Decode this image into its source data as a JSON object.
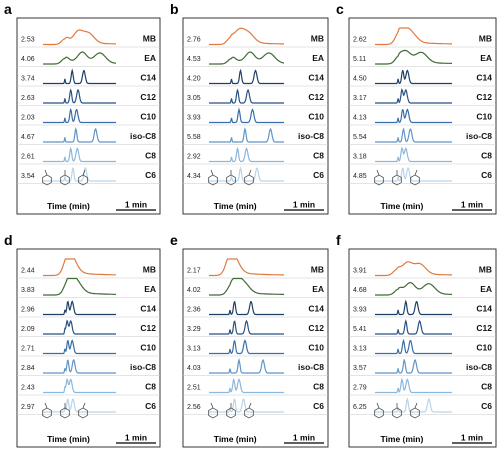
{
  "chart_data": [
    {
      "panel": "a",
      "type": "line",
      "xlabel": "Time (min)",
      "scale_bar": "1 min",
      "rows": [
        {
          "label": "MB",
          "value": "2.53",
          "color": "#e07a3c",
          "peaks": [
            0.3,
            0.48,
            0.62
          ]
        },
        {
          "label": "EA",
          "value": "4.06",
          "color": "#3f6b35",
          "peaks": [
            0.3,
            0.54,
            0.78
          ]
        },
        {
          "label": "C14",
          "value": "3.74",
          "color": "#1e3f66",
          "peaks": [
            0.3,
            0.4,
            0.56
          ]
        },
        {
          "label": "C12",
          "value": "2.63",
          "color": "#2a5282",
          "peaks": [
            0.3,
            0.38,
            0.48
          ]
        },
        {
          "label": "C10",
          "value": "2.03",
          "color": "#3a6ea8",
          "peaks": [
            0.3,
            0.38,
            0.46
          ]
        },
        {
          "label": "iso-C8",
          "value": "4.67",
          "color": "#5f95c8",
          "peaks": [
            0.3,
            0.45,
            0.72
          ]
        },
        {
          "label": "C8",
          "value": "2.61",
          "color": "#8cb7dc",
          "peaks": [
            0.3,
            0.38,
            0.47
          ]
        },
        {
          "label": "C6",
          "value": "3.54",
          "color": "#b9d4ea",
          "peaks": [
            0.3,
            0.41,
            0.58
          ]
        }
      ]
    },
    {
      "panel": "b",
      "type": "line",
      "xlabel": "Time (min)",
      "scale_bar": "1 min",
      "rows": [
        {
          "label": "MB",
          "value": "2.76",
          "color": "#e07a3c",
          "peaks": [
            0.28,
            0.4,
            0.52
          ]
        },
        {
          "label": "EA",
          "value": "4.53",
          "color": "#3f6b35",
          "peaks": [
            0.3,
            0.55,
            0.8
          ]
        },
        {
          "label": "C14",
          "value": "4.20",
          "color": "#1e3f66",
          "peaks": [
            0.3,
            0.42,
            0.62
          ]
        },
        {
          "label": "C12",
          "value": "3.05",
          "color": "#2a5282",
          "peaks": [
            0.3,
            0.38,
            0.52
          ]
        },
        {
          "label": "C10",
          "value": "3.93",
          "color": "#3a6ea8",
          "peaks": [
            0.3,
            0.4,
            0.58
          ]
        },
        {
          "label": "iso-C8",
          "value": "5.58",
          "color": "#5f95c8",
          "peaks": [
            0.3,
            0.48,
            0.82
          ]
        },
        {
          "label": "C8",
          "value": "2.92",
          "color": "#8cb7dc",
          "peaks": [
            0.3,
            0.38,
            0.5
          ]
        },
        {
          "label": "C6",
          "value": "4.34",
          "color": "#b9d4ea",
          "peaks": [
            0.3,
            0.42,
            0.64
          ]
        }
      ]
    },
    {
      "panel": "c",
      "type": "line",
      "xlabel": "Time (min)",
      "scale_bar": "1 min",
      "rows": [
        {
          "label": "MB",
          "value": "2.62",
          "color": "#e07a3c",
          "peaks": [
            0.3,
            0.36,
            0.46
          ]
        },
        {
          "label": "EA",
          "value": "5.11",
          "color": "#3f6b35",
          "peaks": [
            0.3,
            0.4,
            0.6
          ]
        },
        {
          "label": "C14",
          "value": "4.50",
          "color": "#1e3f66",
          "peaks": [
            0.3,
            0.36,
            0.42
          ]
        },
        {
          "label": "C12",
          "value": "3.17",
          "color": "#2a5282",
          "peaks": [
            0.3,
            0.35,
            0.4
          ]
        },
        {
          "label": "C10",
          "value": "4.13",
          "color": "#3a6ea8",
          "peaks": [
            0.3,
            0.36,
            0.42
          ]
        },
        {
          "label": "iso-C8",
          "value": "5.54",
          "color": "#5f95c8",
          "peaks": [
            0.3,
            0.37,
            0.46
          ]
        },
        {
          "label": "C8",
          "value": "3.18",
          "color": "#8cb7dc",
          "peaks": [
            0.3,
            0.35,
            0.4
          ]
        },
        {
          "label": "C6",
          "value": "4.85",
          "color": "#b9d4ea",
          "peaks": [
            0.3,
            0.36,
            0.43
          ]
        }
      ]
    },
    {
      "panel": "d",
      "type": "line",
      "xlabel": "Time (min)",
      "scale_bar": "1 min",
      "rows": [
        {
          "label": "MB",
          "value": "2.44",
          "color": "#e07a3c",
          "peaks": [
            0.32,
            0.36,
            0.4
          ]
        },
        {
          "label": "EA",
          "value": "3.83",
          "color": "#3f6b35",
          "peaks": [
            0.32,
            0.38,
            0.46
          ]
        },
        {
          "label": "C14",
          "value": "2.96",
          "color": "#1e3f66",
          "peaks": [
            0.3,
            0.34,
            0.4
          ]
        },
        {
          "label": "C12",
          "value": "2.09",
          "color": "#2a5282",
          "peaks": [
            0.3,
            0.33,
            0.38
          ]
        },
        {
          "label": "C10",
          "value": "2.71",
          "color": "#3a6ea8",
          "peaks": [
            0.3,
            0.34,
            0.4
          ]
        },
        {
          "label": "iso-C8",
          "value": "2.84",
          "color": "#5f95c8",
          "peaks": [
            0.3,
            0.34,
            0.42
          ]
        },
        {
          "label": "C8",
          "value": "2.43",
          "color": "#8cb7dc",
          "peaks": [
            0.3,
            0.33,
            0.38
          ]
        },
        {
          "label": "C6",
          "value": "2.97",
          "color": "#b9d4ea",
          "peaks": [
            0.3,
            0.34,
            0.41
          ]
        }
      ]
    },
    {
      "panel": "e",
      "type": "line",
      "xlabel": "Time (min)",
      "scale_bar": "1 min",
      "rows": [
        {
          "label": "MB",
          "value": "2.17",
          "color": "#e07a3c",
          "peaks": [
            0.26,
            0.3,
            0.34
          ]
        },
        {
          "label": "EA",
          "value": "4.02",
          "color": "#3f6b35",
          "peaks": [
            0.28,
            0.36,
            0.46
          ]
        },
        {
          "label": "C14",
          "value": "2.36",
          "color": "#1e3f66",
          "peaks": [
            0.28,
            0.34,
            0.56
          ]
        },
        {
          "label": "C12",
          "value": "3.29",
          "color": "#2a5282",
          "peaks": [
            0.28,
            0.34,
            0.5
          ]
        },
        {
          "label": "C10",
          "value": "3.13",
          "color": "#3a6ea8",
          "peaks": [
            0.28,
            0.34,
            0.48
          ]
        },
        {
          "label": "iso-C8",
          "value": "4.03",
          "color": "#5f95c8",
          "peaks": [
            0.28,
            0.4,
            0.72
          ]
        },
        {
          "label": "C8",
          "value": "2.51",
          "color": "#8cb7dc",
          "peaks": [
            0.28,
            0.33,
            0.4
          ]
        },
        {
          "label": "C6",
          "value": "2.56",
          "color": "#b9d4ea",
          "peaks": [
            0.28,
            0.34,
            0.46
          ]
        }
      ]
    },
    {
      "panel": "f",
      "type": "line",
      "xlabel": "Time (min)",
      "scale_bar": "1 min",
      "rows": [
        {
          "label": "MB",
          "value": "3.91",
          "color": "#e07a3c",
          "peaks": [
            0.28,
            0.42,
            0.58
          ]
        },
        {
          "label": "EA",
          "value": "4.68",
          "color": "#3f6b35",
          "peaks": [
            0.3,
            0.46,
            0.7
          ]
        },
        {
          "label": "C14",
          "value": "3.93",
          "color": "#1e3f66",
          "peaks": [
            0.3,
            0.4,
            0.54
          ]
        },
        {
          "label": "C12",
          "value": "5.41",
          "color": "#2a5282",
          "peaks": [
            0.3,
            0.4,
            0.58
          ]
        },
        {
          "label": "C10",
          "value": "3.13",
          "color": "#3a6ea8",
          "peaks": [
            0.3,
            0.37,
            0.46
          ]
        },
        {
          "label": "iso-C8",
          "value": "3.57",
          "color": "#5f95c8",
          "peaks": [
            0.3,
            0.38,
            0.52
          ]
        },
        {
          "label": "C8",
          "value": "2.79",
          "color": "#8cb7dc",
          "peaks": [
            0.3,
            0.35,
            0.42
          ]
        },
        {
          "label": "C6",
          "value": "6.25",
          "color": "#b9d4ea",
          "peaks": [
            0.3,
            0.42,
            0.7
          ]
        }
      ]
    }
  ]
}
